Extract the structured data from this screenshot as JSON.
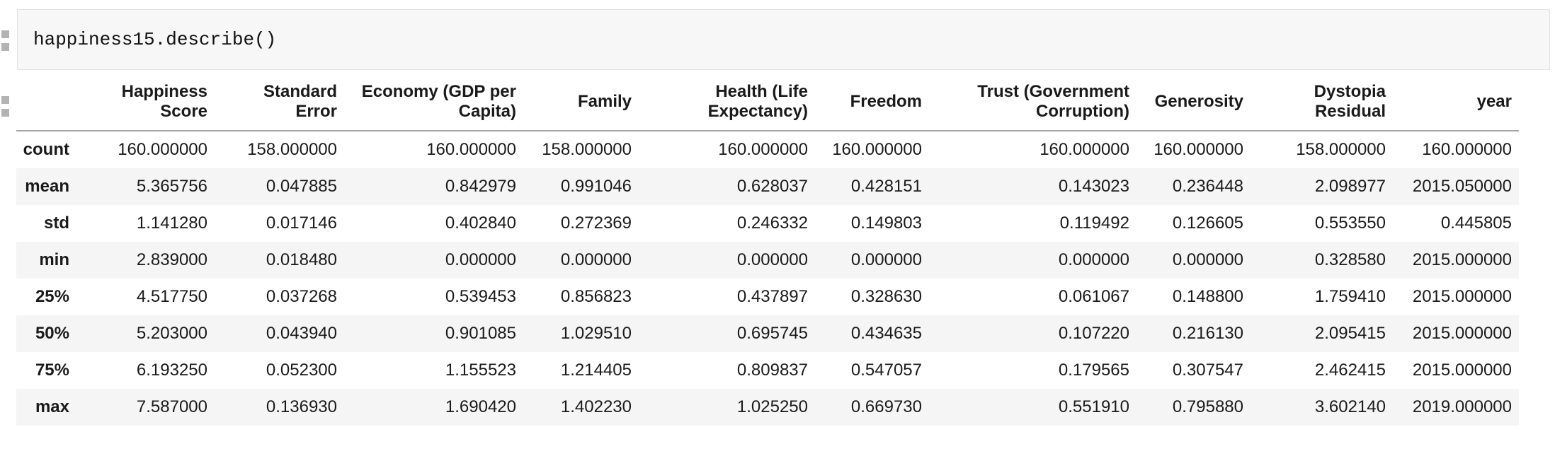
{
  "code_cell": {
    "source": "happiness15.describe()"
  },
  "table": {
    "index_corner": "",
    "columns": [
      "Happiness\nScore",
      "Standard\nError",
      "Economy (GDP per\nCapita)",
      "Family",
      "Health (Life\nExpectancy)",
      "Freedom",
      "Trust (Government\nCorruption)",
      "Generosity",
      "Dystopia\nResidual",
      "year"
    ],
    "rows": [
      {
        "label": "count",
        "values": [
          "160.000000",
          "158.000000",
          "160.000000",
          "158.000000",
          "160.000000",
          "160.000000",
          "160.000000",
          "160.000000",
          "158.000000",
          "160.000000"
        ]
      },
      {
        "label": "mean",
        "values": [
          "5.365756",
          "0.047885",
          "0.842979",
          "0.991046",
          "0.628037",
          "0.428151",
          "0.143023",
          "0.236448",
          "2.098977",
          "2015.050000"
        ]
      },
      {
        "label": "std",
        "values": [
          "1.141280",
          "0.017146",
          "0.402840",
          "0.272369",
          "0.246332",
          "0.149803",
          "0.119492",
          "0.126605",
          "0.553550",
          "0.445805"
        ]
      },
      {
        "label": "min",
        "values": [
          "2.839000",
          "0.018480",
          "0.000000",
          "0.000000",
          "0.000000",
          "0.000000",
          "0.000000",
          "0.000000",
          "0.328580",
          "2015.000000"
        ]
      },
      {
        "label": "25%",
        "values": [
          "4.517750",
          "0.037268",
          "0.539453",
          "0.856823",
          "0.437897",
          "0.328630",
          "0.061067",
          "0.148800",
          "1.759410",
          "2015.000000"
        ]
      },
      {
        "label": "50%",
        "values": [
          "5.203000",
          "0.043940",
          "0.901085",
          "1.029510",
          "0.695745",
          "0.434635",
          "0.107220",
          "0.216130",
          "2.095415",
          "2015.000000"
        ]
      },
      {
        "label": "75%",
        "values": [
          "6.193250",
          "0.052300",
          "1.155523",
          "1.214405",
          "0.809837",
          "0.547057",
          "0.179565",
          "0.307547",
          "2.462415",
          "2015.000000"
        ]
      },
      {
        "label": "max",
        "values": [
          "7.587000",
          "0.136930",
          "1.690420",
          "1.402230",
          "1.025250",
          "0.669730",
          "0.551910",
          "0.795880",
          "3.602140",
          "2019.000000"
        ]
      }
    ]
  },
  "colors": {
    "cell_background": "#f7f7f7",
    "cell_border": "#e1e1e1",
    "row_stripe": "#f5f5f5",
    "header_rule": "#a6a6a6",
    "text": "#1a1a1a",
    "handle": "#b3b3b3"
  }
}
